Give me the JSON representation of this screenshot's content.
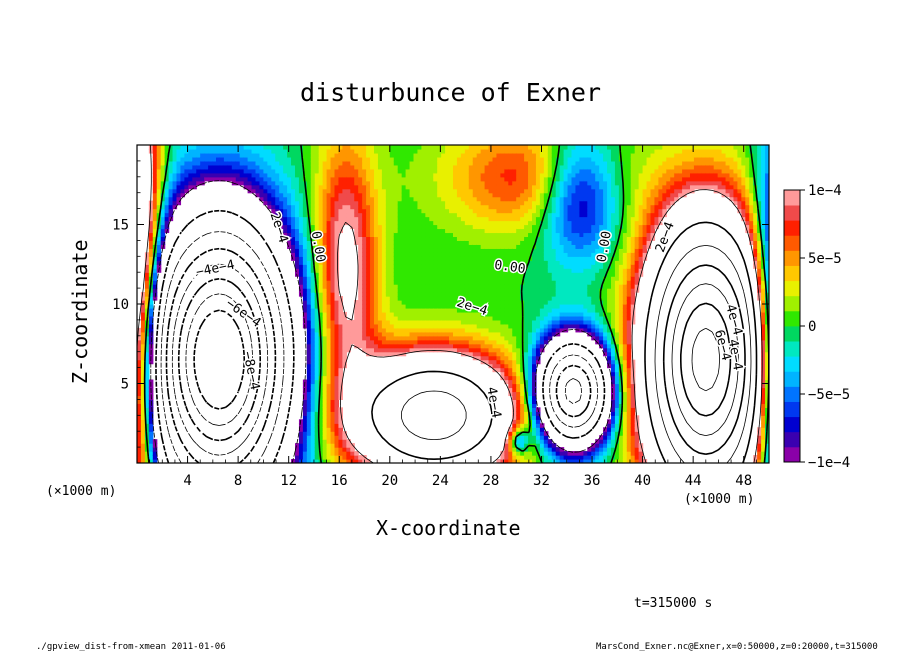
{
  "chart_data": {
    "type": "contour",
    "title": "disturbunce of Exner",
    "xlabel": "X-coordinate",
    "ylabel": "Z-coordinate",
    "x_unit": "(×1000 m)",
    "y_unit": "(×1000 m)",
    "xlim": [
      0,
      50
    ],
    "ylim": [
      0,
      20
    ],
    "x_ticks": [
      4,
      8,
      12,
      16,
      20,
      24,
      28,
      32,
      36,
      40,
      44,
      48
    ],
    "y_ticks": [
      5,
      10,
      15
    ],
    "colorbar": {
      "min": -0.0001,
      "max": 0.0001,
      "labels": [
        {
          "text": "1e−4",
          "value": 0.0001
        },
        {
          "text": "5e−5",
          "value": 5e-05
        },
        {
          "text": "0",
          "value": 0
        },
        {
          "text": "−5e−5",
          "value": -5e-05
        },
        {
          "text": "−1e−4",
          "value": -0.0001
        }
      ],
      "colors": [
        "#8a00a8",
        "#3a00b0",
        "#0000d0",
        "#0038f0",
        "#0074ff",
        "#00b4ff",
        "#00dcff",
        "#00e8c0",
        "#00d860",
        "#30e800",
        "#a0f000",
        "#e8f000",
        "#ffc800",
        "#ff9600",
        "#ff5a00",
        "#ff2000",
        "#f04a4a",
        "#ff9a9a"
      ]
    },
    "contour_labels": [
      {
        "text": "2e−4",
        "x": 11.2,
        "z": 14.8,
        "rot": 72
      },
      {
        "text": "−4e−4",
        "x": 6.2,
        "z": 12.2,
        "rot": -12
      },
      {
        "text": "−6e−4",
        "x": 8.4,
        "z": 9.4,
        "rot": 35
      },
      {
        "text": "−8e−4",
        "x": 9.0,
        "z": 5.8,
        "rot": 78
      },
      {
        "text": "0.00",
        "x": 14.3,
        "z": 13.6,
        "rot": 80
      },
      {
        "text": "2e−4",
        "x": 26.5,
        "z": 9.8,
        "rot": 18
      },
      {
        "text": "0.00",
        "x": 29.5,
        "z": 12.3,
        "rot": 8
      },
      {
        "text": "4e−4",
        "x": 28.2,
        "z": 3.8,
        "rot": 80
      },
      {
        "text": "0.00",
        "x": 37.0,
        "z": 13.6,
        "rot": -80
      },
      {
        "text": "2e−4",
        "x": 41.8,
        "z": 14.2,
        "rot": -70
      },
      {
        "text": "4e−4",
        "x": 47.2,
        "z": 9.0,
        "rot": 75
      },
      {
        "text": "6e−4",
        "x": 46.3,
        "z": 7.4,
        "rot": 75
      },
      {
        "text": "4e−4",
        "x": 47.3,
        "z": 6.8,
        "rot": 80
      }
    ],
    "time_label": "t=315000 s"
  },
  "footer": {
    "left": "./gpview_dist-from-xmean  2011-01-06",
    "right": "MarsCond_Exner.nc@Exner,x=0:50000,z=0:20000,t=315000"
  }
}
